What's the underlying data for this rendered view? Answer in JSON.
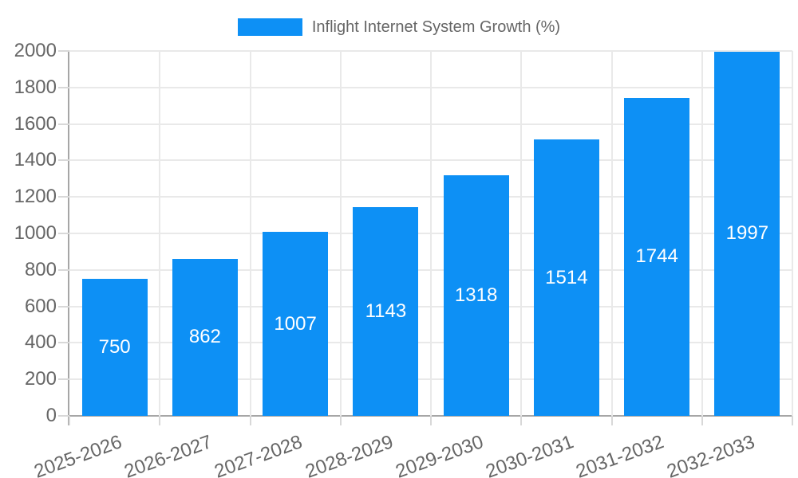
{
  "chart_data": {
    "type": "bar",
    "legend_label": "Inflight Internet System Growth (%)",
    "categories": [
      "2025-2026",
      "2026-2027",
      "2027-2028",
      "2028-2029",
      "2029-2030",
      "2030-2031",
      "2031-2032",
      "2032-2033"
    ],
    "values": [
      750,
      862,
      1007,
      1143,
      1318,
      1514,
      1744,
      1997
    ],
    "ylim": [
      0,
      2000
    ],
    "ytick_step": 200,
    "ytick_labels": [
      "0",
      "200",
      "400",
      "600",
      "800",
      "1000",
      "1200",
      "1400",
      "1600",
      "1800",
      "2000"
    ],
    "grid": true,
    "legend_position": "top-center",
    "value_labels_shown": true,
    "xlabel": "",
    "ylabel": ""
  },
  "style": {
    "bar_color": "#0d90f5",
    "value_label_color": "#ffffff",
    "tick_label_color": "#666666",
    "legend_text_color": "#666666",
    "gridline_color": "#e9e9e9",
    "tick_mark_color": "#d8d8d8",
    "axis_line_color": "#a6a6a6",
    "background_color": "#ffffff"
  }
}
